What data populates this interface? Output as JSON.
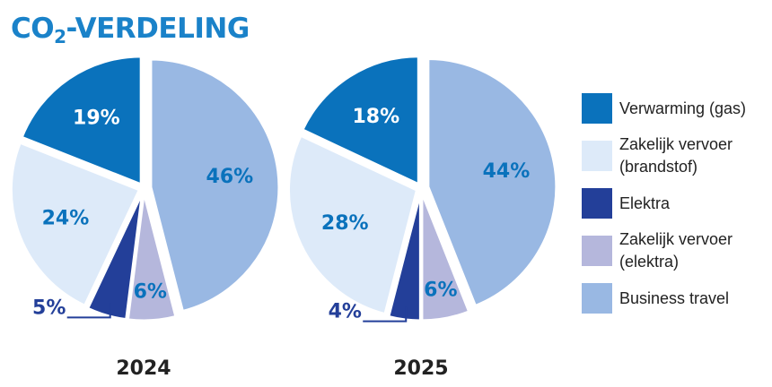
{
  "page": {
    "title_main": "CO",
    "title_sub": "2",
    "title_rest": "-VERDELING"
  },
  "colors": {
    "verwarming": "#0a72bc",
    "zakelijk_brandstof": "#ddeaf9",
    "elektra": "#233f99",
    "zakelijk_elektra": "#b5b7dc",
    "business_travel": "#99b8e3"
  },
  "chart_data": [
    {
      "type": "pie",
      "year_label": "2024",
      "slices": [
        {
          "name": "Business travel",
          "value": 46,
          "label": "46%"
        },
        {
          "name": "Zakelijk vervoer (elektra)",
          "value": 6,
          "label": "6%"
        },
        {
          "name": "Elektra",
          "value": 5,
          "label": "5%"
        },
        {
          "name": "Zakelijk vervoer (brandstof)",
          "value": 24,
          "label": "24%"
        },
        {
          "name": "Verwarming (gas)",
          "value": 19,
          "label": "19%"
        }
      ]
    },
    {
      "type": "pie",
      "year_label": "2025",
      "slices": [
        {
          "name": "Business travel",
          "value": 44,
          "label": "44%"
        },
        {
          "name": "Zakelijk vervoer (elektra)",
          "value": 6,
          "label": "6%"
        },
        {
          "name": "Elektra",
          "value": 4,
          "label": "4%"
        },
        {
          "name": "Zakelijk vervoer (brandstof)",
          "value": 28,
          "label": "28%"
        },
        {
          "name": "Verwarming (gas)",
          "value": 18,
          "label": "18%"
        }
      ]
    }
  ],
  "legend": [
    {
      "label": "Verwarming (gas)",
      "color": "#0a72bc"
    },
    {
      "label": "Zakelijk vervoer\n(brandstof)",
      "color": "#ddeaf9"
    },
    {
      "label": "Elektra",
      "color": "#233f99"
    },
    {
      "label": "Zakelijk vervoer\n(elektra)",
      "color": "#b5b7dc"
    },
    {
      "label": "Business travel",
      "color": "#99b8e3"
    }
  ]
}
